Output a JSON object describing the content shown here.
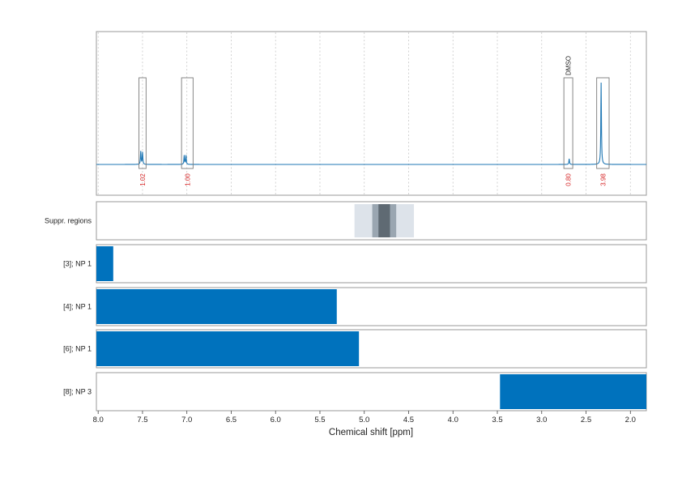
{
  "chart_data": {
    "type": "line",
    "xlabel": "Chemical shift [ppm]",
    "xlim": [
      8.02,
      1.82
    ],
    "x_ticks": [
      "8.0",
      "7.5",
      "7.0",
      "6.5",
      "6.0",
      "5.5",
      "5.0",
      "4.5",
      "4.0",
      "3.5",
      "3.0",
      "2.5",
      "2.0"
    ],
    "grid": true,
    "spectrum": {
      "baseline": 0.0,
      "peaks": [
        {
          "x": 7.52,
          "height": 0.16,
          "width": 0.004
        },
        {
          "x": 7.5,
          "height": 0.15,
          "width": 0.004
        },
        {
          "x": 7.03,
          "height": 0.11,
          "width": 0.004
        },
        {
          "x": 7.01,
          "height": 0.11,
          "width": 0.004
        },
        {
          "x": 2.69,
          "height": 0.07,
          "width": 0.004
        },
        {
          "x": 2.33,
          "height": 1.0,
          "width": 0.004
        }
      ]
    },
    "peak_regions": [
      {
        "x_from": 7.54,
        "x_to": 7.46,
        "integral": "1.02",
        "annotation": ""
      },
      {
        "x_from": 7.06,
        "x_to": 6.93,
        "integral": "1.00",
        "annotation": ""
      },
      {
        "x_from": 2.75,
        "x_to": 2.65,
        "integral": "0.80",
        "annotation": "DMSO"
      },
      {
        "x_from": 2.38,
        "x_to": 2.24,
        "integral": "3.98",
        "annotation": ""
      }
    ],
    "suppressed_regions": {
      "label": "Suppr. regions",
      "bands": [
        {
          "x_from": 5.11,
          "x_to": 4.44,
          "level": "light"
        },
        {
          "x_from": 4.91,
          "x_to": 4.64,
          "level": "medium"
        },
        {
          "x_from": 4.84,
          "x_to": 4.71,
          "level": "dark"
        }
      ]
    },
    "np_rows": [
      {
        "label": "[3]; NP 1",
        "x_from": 8.02,
        "x_to": 7.83
      },
      {
        "label": "[4]; NP 1",
        "x_from": 8.02,
        "x_to": 5.31
      },
      {
        "label": "[6]; NP 1",
        "x_from": 8.02,
        "x_to": 5.06
      },
      {
        "label": "[8]; NP 3",
        "x_from": 3.47,
        "x_to": 1.82
      }
    ],
    "colors": {
      "spectrum": "#1f77b4",
      "bar": "#0072bd",
      "band_light": "#dde3ea",
      "band_medium": "#9aa6b1",
      "band_dark": "#5f6a73",
      "integral": "#d62728"
    }
  }
}
